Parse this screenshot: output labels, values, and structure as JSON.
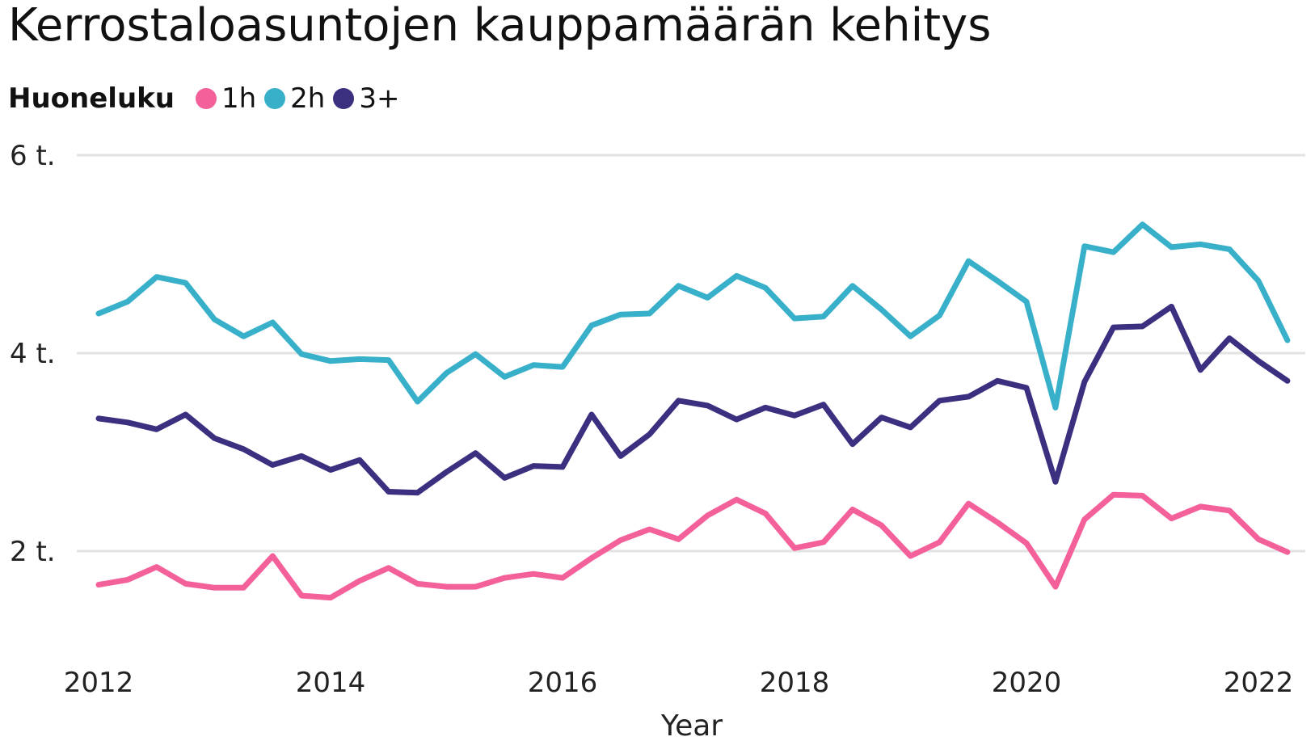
{
  "title": "Kerrostaloasuntojen kauppamäärän kehitys",
  "legend": {
    "title": "Huoneluku",
    "items": [
      {
        "label": "1h",
        "color": "#F4609A"
      },
      {
        "label": "2h",
        "color": "#38B0C9"
      },
      {
        "label": "3+",
        "color": "#3B2F80"
      }
    ]
  },
  "chart_data": {
    "type": "line",
    "title": "Kerrostaloasuntojen kauppamäärän kehitys",
    "xlabel": "Year",
    "ylabel": "",
    "x_ticks": [
      "2012",
      "2014",
      "2016",
      "2018",
      "2020",
      "2022"
    ],
    "y_ticks": [
      {
        "value": 2000,
        "label": "2 t."
      },
      {
        "value": 4000,
        "label": "4 t."
      },
      {
        "value": 6000,
        "label": "6 t."
      }
    ],
    "ylim": [
      800,
      6000
    ],
    "xlim": [
      2011.8,
      2022.35
    ],
    "grid": "horizontal",
    "legend_position": "top-left",
    "x": [
      "2012 Q1",
      "2012 Q2",
      "2012 Q3",
      "2012 Q4",
      "2013 Q1",
      "2013 Q2",
      "2013 Q3",
      "2013 Q4",
      "2014 Q1",
      "2014 Q2",
      "2014 Q3",
      "2014 Q4",
      "2015 Q1",
      "2015 Q2",
      "2015 Q3",
      "2015 Q4",
      "2016 Q1",
      "2016 Q2",
      "2016 Q3",
      "2016 Q4",
      "2017 Q1",
      "2017 Q2",
      "2017 Q3",
      "2017 Q4",
      "2018 Q1",
      "2018 Q2",
      "2018 Q3",
      "2018 Q4",
      "2019 Q1",
      "2019 Q2",
      "2019 Q3",
      "2019 Q4",
      "2020 Q1",
      "2020 Q2",
      "2020 Q3",
      "2020 Q4",
      "2021 Q1",
      "2021 Q2",
      "2021 Q3",
      "2021 Q4",
      "2022 Q1",
      "2022 Q2"
    ],
    "series": [
      {
        "name": "1h",
        "color": "#F4609A",
        "values": [
          1660,
          1710,
          1840,
          1670,
          1630,
          1630,
          1950,
          1550,
          1530,
          1700,
          1830,
          1670,
          1640,
          1640,
          1730,
          1770,
          1730,
          1930,
          2110,
          2220,
          2120,
          2360,
          2520,
          2380,
          2030,
          2090,
          2420,
          2260,
          1950,
          2090,
          2480,
          2290,
          2080,
          1640,
          2320,
          2570,
          2560,
          2330,
          2450,
          2410,
          2120,
          1990
        ]
      },
      {
        "name": "2h",
        "color": "#38B0C9",
        "values": [
          4400,
          4520,
          4770,
          4710,
          4340,
          4170,
          4310,
          3990,
          3920,
          3940,
          3930,
          3510,
          3800,
          3990,
          3760,
          3880,
          3860,
          4280,
          4390,
          4400,
          4680,
          4560,
          4780,
          4660,
          4350,
          4370,
          4680,
          4440,
          4170,
          4380,
          4930,
          4730,
          4520,
          3450,
          5080,
          5020,
          5300,
          5070,
          5100,
          5050,
          4730,
          4130
        ]
      },
      {
        "name": "3+",
        "color": "#3B2F80",
        "values": [
          3340,
          3300,
          3230,
          3380,
          3140,
          3030,
          2870,
          2960,
          2820,
          2920,
          2600,
          2590,
          2800,
          2990,
          2740,
          2860,
          2850,
          3380,
          2960,
          3180,
          3520,
          3470,
          3330,
          3450,
          3370,
          3480,
          3080,
          3350,
          3250,
          3520,
          3560,
          3720,
          3650,
          2700,
          3710,
          4260,
          4270,
          4470,
          3830,
          4150,
          3920,
          3720
        ]
      }
    ]
  }
}
